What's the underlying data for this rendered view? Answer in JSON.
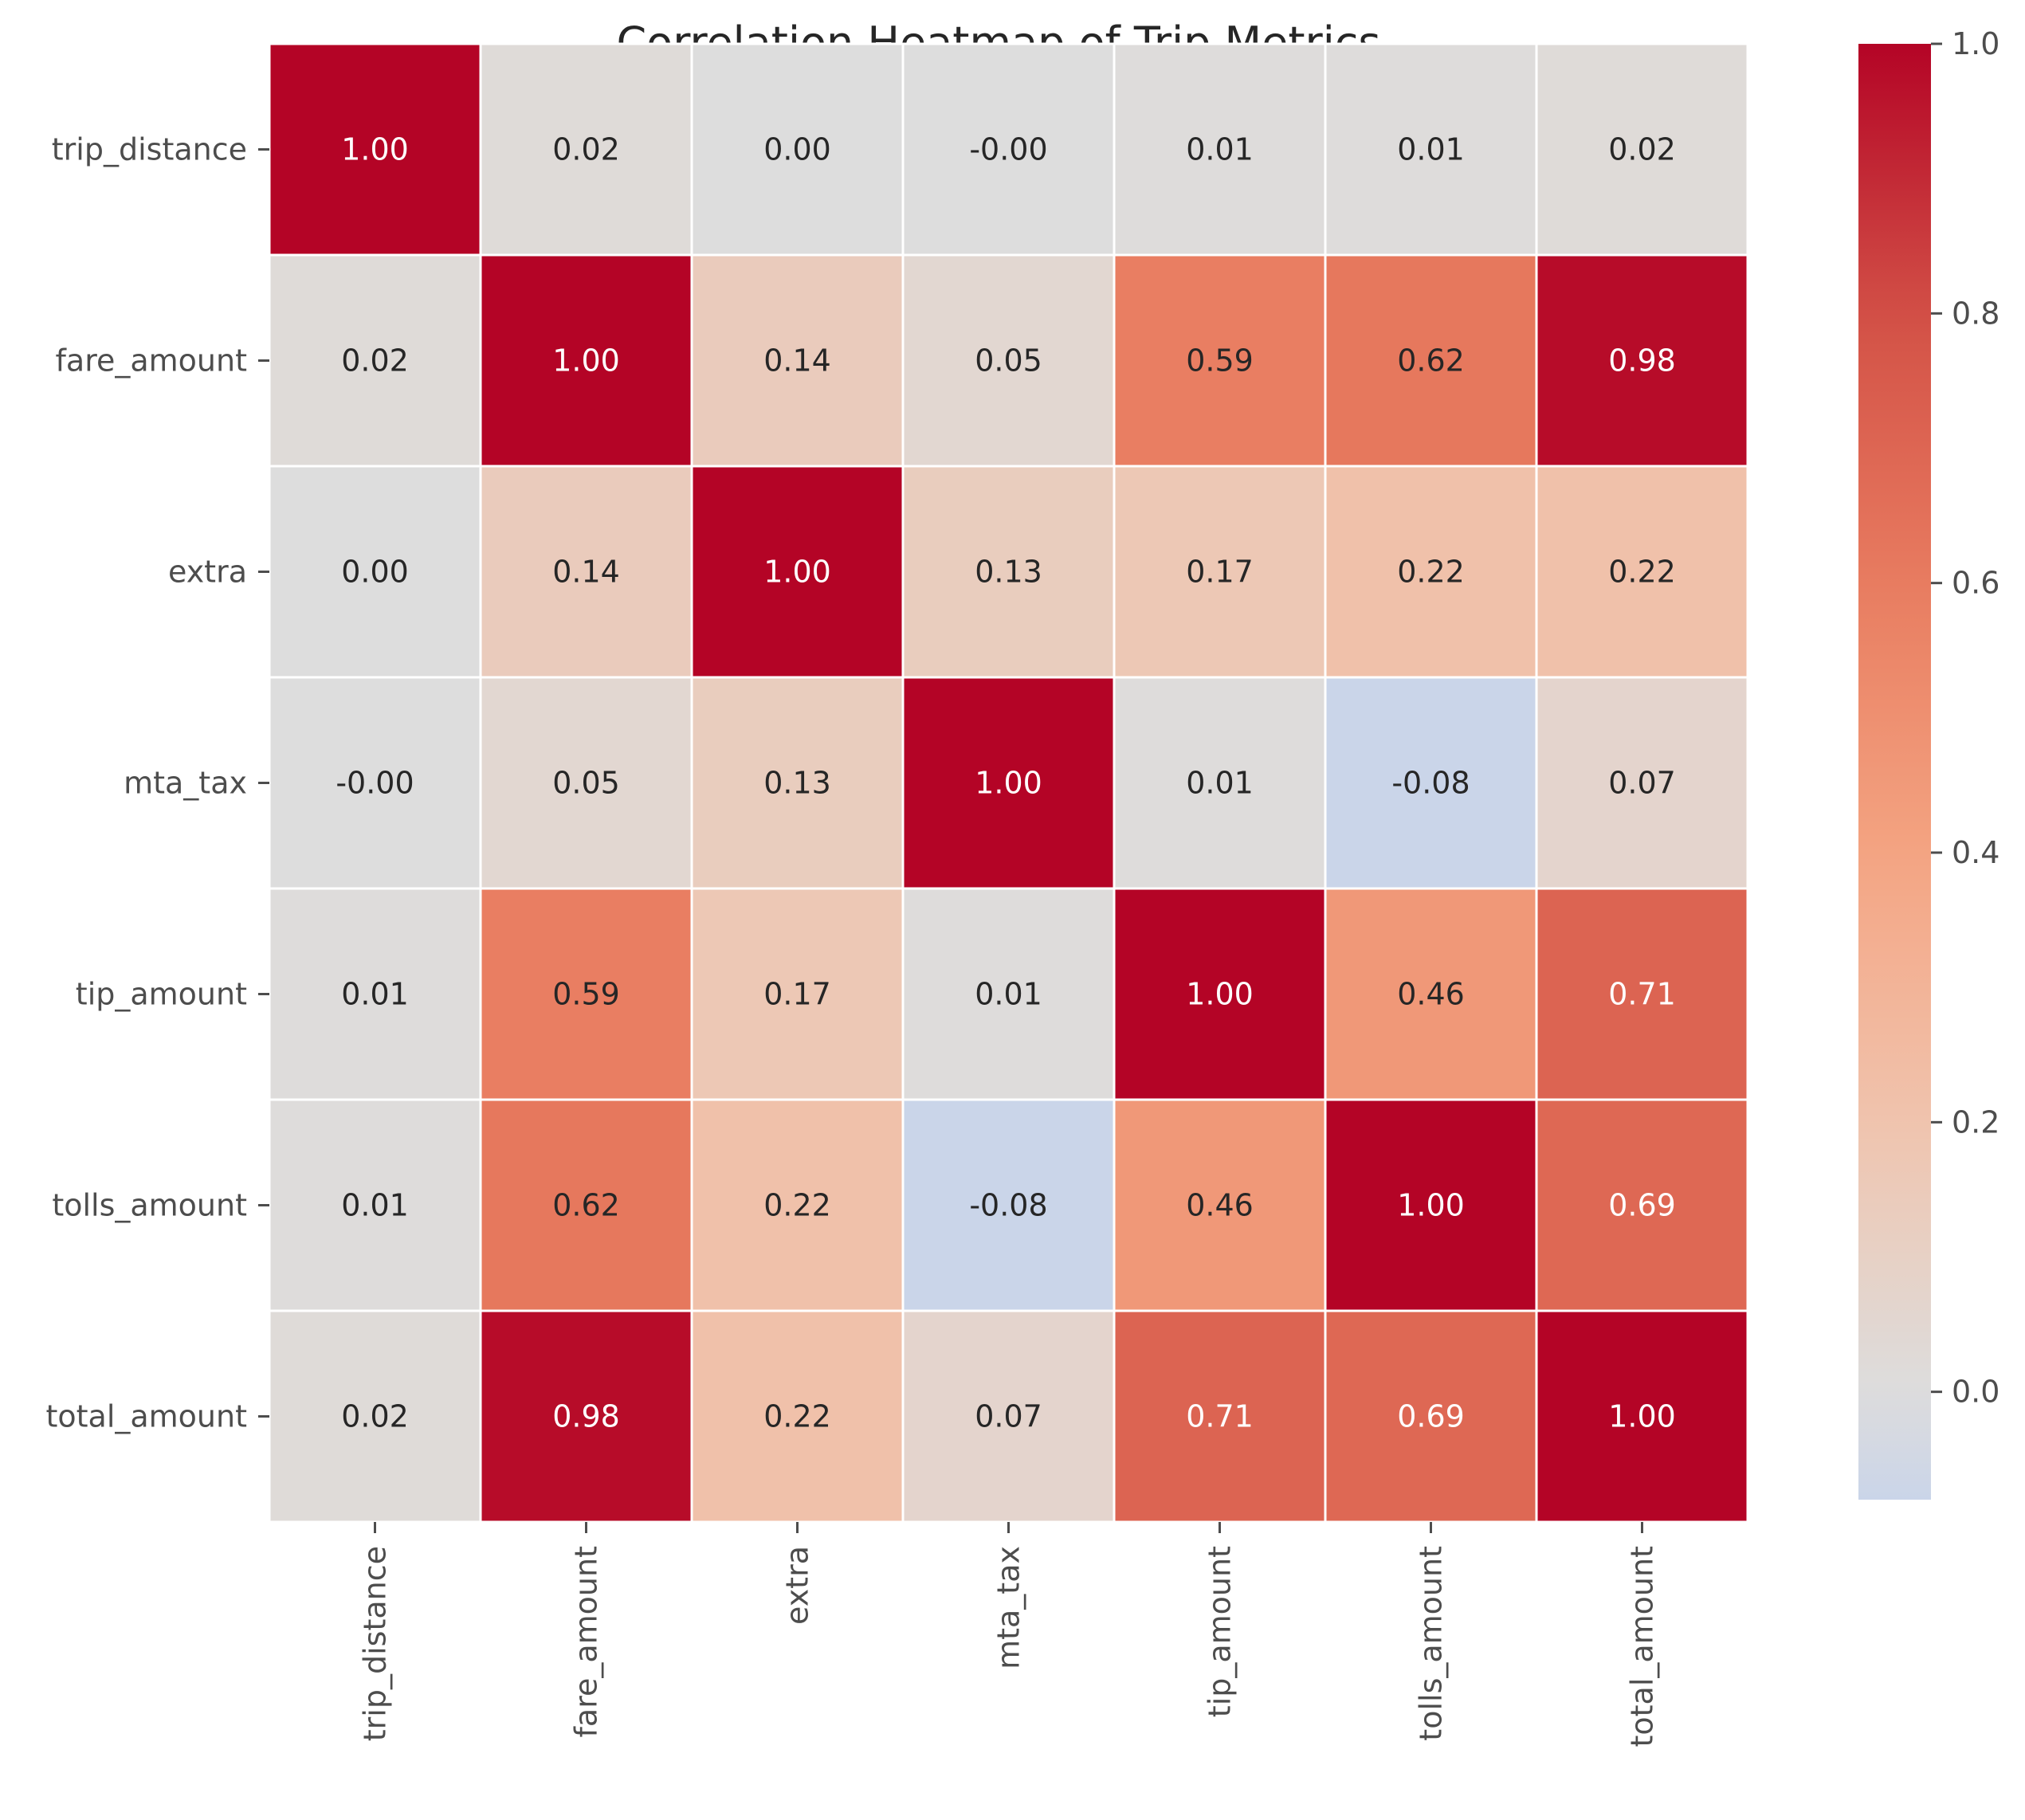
{
  "chart_data": {
    "type": "heatmap",
    "title": "Correlation Heatmap of Trip Metrics",
    "xlabel": "",
    "ylabel": "",
    "rows": [
      "trip_distance",
      "fare_amount",
      "extra",
      "mta_tax",
      "tip_amount",
      "tolls_amount",
      "total_amount"
    ],
    "columns": [
      "trip_distance",
      "fare_amount",
      "extra",
      "mta_tax",
      "tip_amount",
      "tolls_amount",
      "total_amount"
    ],
    "values": [
      [
        1.0,
        0.02,
        0.0,
        -0.0,
        0.01,
        0.01,
        0.02
      ],
      [
        0.02,
        1.0,
        0.14,
        0.05,
        0.59,
        0.62,
        0.98
      ],
      [
        0.0,
        0.14,
        1.0,
        0.13,
        0.17,
        0.22,
        0.22
      ],
      [
        -0.0,
        0.05,
        0.13,
        1.0,
        0.01,
        -0.08,
        0.07
      ],
      [
        0.01,
        0.59,
        0.17,
        0.01,
        1.0,
        0.46,
        0.71
      ],
      [
        0.01,
        0.62,
        0.22,
        -0.08,
        0.46,
        1.0,
        0.69
      ],
      [
        0.02,
        0.98,
        0.22,
        0.07,
        0.71,
        0.69,
        1.0
      ]
    ],
    "cell_labels": [
      [
        "1.00",
        "0.02",
        "0.00",
        "-0.00",
        "0.01",
        "0.01",
        "0.02"
      ],
      [
        "0.02",
        "1.00",
        "0.14",
        "0.05",
        "0.59",
        "0.62",
        "0.98"
      ],
      [
        "0.00",
        "0.14",
        "1.00",
        "0.13",
        "0.17",
        "0.22",
        "0.22"
      ],
      [
        "-0.00",
        "0.05",
        "0.13",
        "1.00",
        "0.01",
        "-0.08",
        "0.07"
      ],
      [
        "0.01",
        "0.59",
        "0.17",
        "0.01",
        "1.00",
        "0.46",
        "0.71"
      ],
      [
        "0.01",
        "0.62",
        "0.22",
        "-0.08",
        "0.46",
        "1.00",
        "0.69"
      ],
      [
        "0.02",
        "0.98",
        "0.22",
        "0.07",
        "0.71",
        "0.69",
        "1.00"
      ]
    ],
    "colormap": "coolwarm",
    "center": 0,
    "colorbar": {
      "range": [
        -0.08,
        1.0
      ],
      "ticks": [
        0.0,
        0.2,
        0.4,
        0.6,
        0.8,
        1.0
      ],
      "tick_labels": [
        "0.0",
        "0.2",
        "0.4",
        "0.6",
        "0.8",
        "1.0"
      ],
      "position": "right"
    },
    "grid_line_color": "#ffffff",
    "annotation_colors": {
      "dark": "#262626",
      "light": "#ffffff"
    }
  }
}
